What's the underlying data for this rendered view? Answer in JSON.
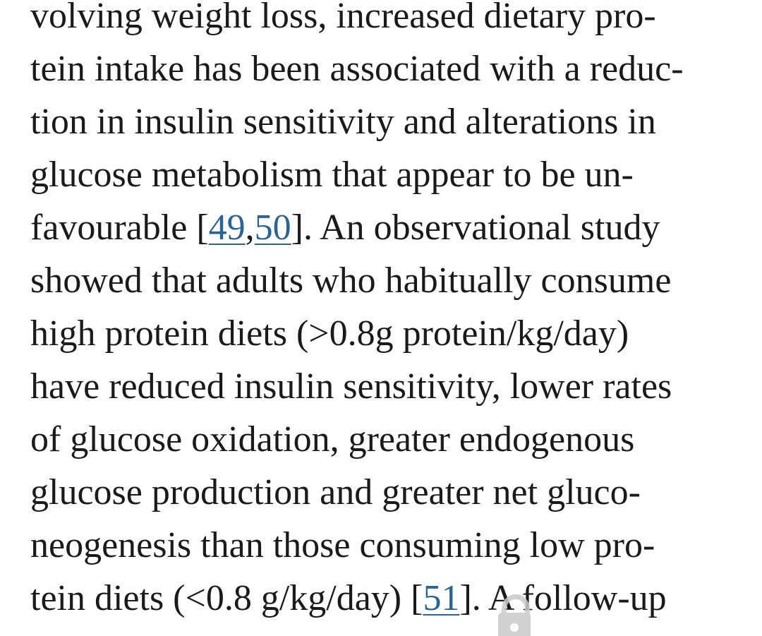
{
  "article": {
    "lines": [
      "volving weight loss, increased dietary pro-",
      "tein intake has been associated with a reduc-",
      "tion in insulin sensitivity and alterations in",
      "glucose metabolism that appear to be un-",
      {
        "before": "favourable [",
        "refs": [
          "49",
          "50"
        ],
        "sep": ",",
        "after": "]. An observational study"
      },
      "showed that adults who habitually consume",
      "high protein diets (>0.8g protein/kg/day)",
      "have reduced insulin sensitivity, lower rates",
      "of glucose oxidation, greater endogenous",
      "glucose production and greater net gluco-",
      "neogenesis than those consuming low pro-",
      {
        "before": "tein diets (<0.8 g/kg/day) [",
        "refs": [
          "51"
        ],
        "sep": ",",
        "after": "]. A follow-up"
      }
    ]
  },
  "overlay": {
    "icon": "lock-icon",
    "color": "#c9c9c9"
  },
  "colors": {
    "text": "#1a1a1a",
    "link": "#2a6496",
    "background": "#ffffff"
  }
}
